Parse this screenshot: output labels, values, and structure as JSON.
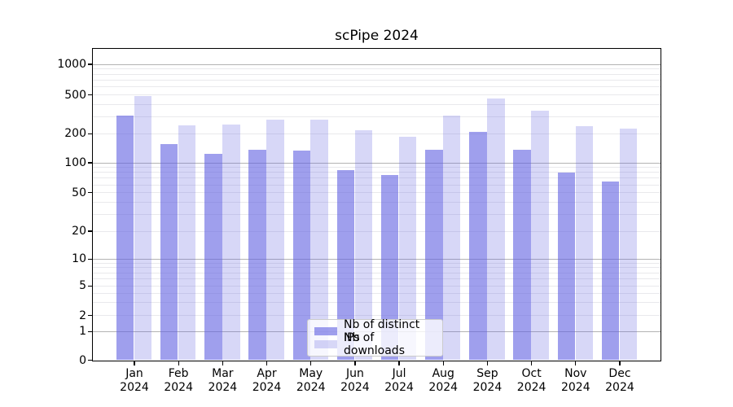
{
  "chart_data": {
    "type": "bar",
    "title": "scPipe 2024",
    "categories": [
      "Jan 2024",
      "Feb 2024",
      "Mar 2024",
      "Apr 2024",
      "May 2024",
      "Jun 2024",
      "Jul 2024",
      "Aug 2024",
      "Sep 2024",
      "Oct 2024",
      "Nov 2024",
      "Dec 2024"
    ],
    "series": [
      {
        "name": "Nb of distinct IPs",
        "values": [
          307,
          156,
          123,
          136,
          132,
          83,
          75,
          136,
          207,
          134,
          79,
          64
        ]
      },
      {
        "name": "Nb of downloads",
        "values": [
          485,
          240,
          245,
          275,
          279,
          214,
          183,
          305,
          453,
          340,
          239,
          223
        ]
      }
    ],
    "y_axis": {
      "scale": "symlog",
      "ticks": [
        0,
        1,
        2,
        5,
        10,
        20,
        50,
        100,
        200,
        500,
        1000
      ]
    },
    "x_axis": {
      "tick_label_lines": 2
    },
    "grid": true,
    "legend_position": "lower center"
  },
  "colors": {
    "bar_base": "#5f5fe1",
    "ips_fill": "rgba(95,95,225,0.60)",
    "downloads_fill": "rgba(95,95,225,0.25)",
    "grid_major": "#b3b3b3",
    "grid_minor": "#e9e9ec",
    "axis": "#000000",
    "legend_border": "#cccccc"
  }
}
